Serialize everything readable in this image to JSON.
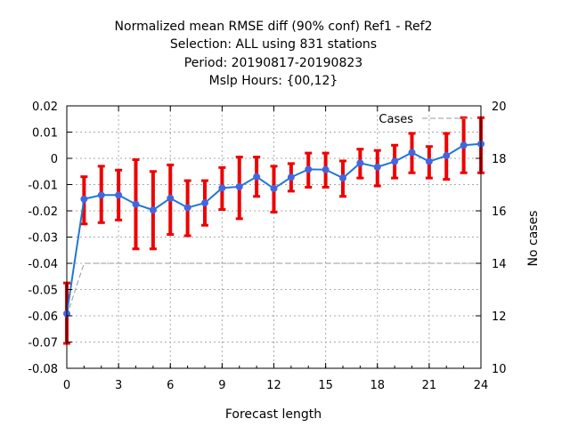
{
  "chart_data": {
    "type": "line",
    "title_lines": [
      "Normalized mean RMSE diff (90% conf) Ref1 - Ref2",
      "Selection: ALL using   831 stations",
      "Period: 20190817-20190823",
      "Mslp   Hours: {00,12}"
    ],
    "xlabel": "Forecast length",
    "ylabel": "",
    "y2label": "No cases",
    "xlim": [
      0,
      24
    ],
    "ylim": [
      -0.08,
      0.02
    ],
    "y2lim": [
      10,
      20
    ],
    "xticks": [
      "0",
      "3",
      "6",
      "9",
      "12",
      "15",
      "18",
      "21",
      "24"
    ],
    "yticks": [
      "0.02",
      "0.01",
      "0",
      "-0.01",
      "-0.02",
      "-0.03",
      "-0.04",
      "-0.05",
      "-0.06",
      "-0.07",
      "-0.08"
    ],
    "y2ticks": [
      "20",
      "18",
      "16",
      "14",
      "12",
      "10"
    ],
    "grid": true,
    "legend_position": "top-right",
    "colors": {
      "series": "#1f77d4",
      "marker": "#4466dd",
      "errorbar": "#ee0000",
      "cases": "#999999"
    },
    "series": [
      {
        "name": "",
        "x": [
          0,
          1,
          2,
          3,
          4,
          5,
          6,
          7,
          8,
          9,
          10,
          11,
          12,
          13,
          14,
          15,
          16,
          17,
          18,
          19,
          20,
          21,
          22,
          23,
          24
        ],
        "values": [
          -0.0592,
          -0.0155,
          -0.014,
          -0.014,
          -0.0175,
          -0.0197,
          -0.0152,
          -0.0188,
          -0.017,
          -0.0113,
          -0.0108,
          -0.007,
          -0.0115,
          -0.0072,
          -0.0042,
          -0.0043,
          -0.0075,
          -0.0018,
          -0.0033,
          -0.0012,
          0.0022,
          -0.0012,
          0.001,
          0.005,
          0.0055
        ],
        "err_low": [
          -0.0705,
          -0.025,
          -0.0245,
          -0.0235,
          -0.0345,
          -0.0345,
          -0.029,
          -0.0295,
          -0.0255,
          -0.0195,
          -0.023,
          -0.0145,
          -0.0205,
          -0.0125,
          -0.011,
          -0.011,
          -0.0145,
          -0.0075,
          -0.0105,
          -0.0075,
          -0.0055,
          -0.0075,
          -0.008,
          -0.0055,
          -0.0055
        ],
        "err_high": [
          -0.0475,
          -0.007,
          -0.003,
          -0.0045,
          -0.0005,
          -0.005,
          -0.0025,
          -0.0085,
          -0.0085,
          -0.0035,
          0.0005,
          0.0005,
          -0.003,
          -0.002,
          0.002,
          0.002,
          -0.001,
          0.0035,
          0.003,
          0.005,
          0.0095,
          0.0045,
          0.0095,
          0.0155,
          0.0155
        ]
      },
      {
        "name": "Cases",
        "axis": "right",
        "x": [
          0,
          1,
          2,
          3,
          4,
          5,
          6,
          7,
          8,
          9,
          10,
          11,
          12,
          13,
          14,
          15,
          16,
          17,
          18,
          19,
          20,
          21,
          22,
          23,
          24
        ],
        "values": [
          12,
          14,
          14,
          14,
          14,
          14,
          14,
          14,
          14,
          14,
          14,
          14,
          14,
          14,
          14,
          14,
          14,
          14,
          14,
          14,
          14,
          14,
          14,
          14,
          14
        ]
      }
    ]
  }
}
